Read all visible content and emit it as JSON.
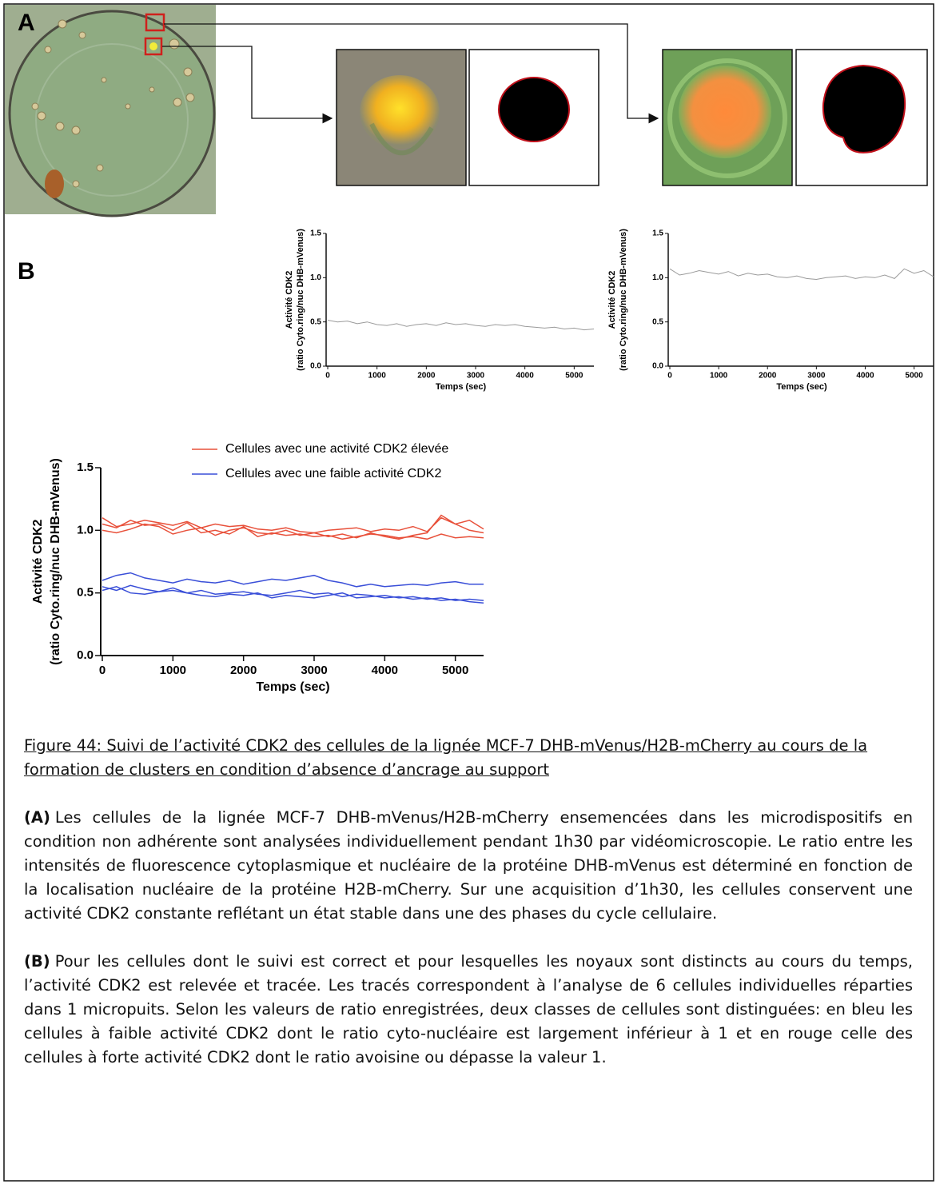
{
  "panel_labels": [
    "A",
    "B"
  ],
  "chart_data": [
    {
      "type": "line",
      "ylabel": [
        "Activité CDK2",
        "(ratio Cyto.ring/nuc DHB-mVenus)"
      ],
      "xlabel": "Temps (sec)",
      "xlim": [
        0,
        5400
      ],
      "ylim": [
        0,
        1.5
      ],
      "xticks": [
        0,
        1000,
        2000,
        3000,
        4000,
        5000
      ],
      "yticks": [
        {
          "value": 0,
          "label": "0.0"
        },
        0.5,
        {
          "value": 1,
          "label": "1.0"
        },
        1.5
      ],
      "x": [
        0,
        200,
        400,
        600,
        800,
        1000,
        1200,
        1400,
        1600,
        1800,
        2000,
        2200,
        2400,
        2600,
        2800,
        3000,
        3200,
        3400,
        3600,
        3800,
        4000,
        4200,
        4400,
        4600,
        4800,
        5000,
        5200,
        5400
      ],
      "color": "#9a9a9a",
      "values": [
        0.52,
        0.5,
        0.51,
        0.48,
        0.5,
        0.47,
        0.46,
        0.48,
        0.45,
        0.47,
        0.48,
        0.46,
        0.49,
        0.47,
        0.48,
        0.46,
        0.45,
        0.47,
        0.46,
        0.47,
        0.45,
        0.44,
        0.43,
        0.44,
        0.42,
        0.43,
        0.41,
        0.42
      ]
    },
    {
      "type": "line",
      "ylabel": [
        "Activité CDK2",
        "(ratio Cyto.ring/nuc DHB-mVenus)"
      ],
      "xlabel": "Temps (sec)",
      "xlim": [
        0,
        5400
      ],
      "ylim": [
        0,
        1.5
      ],
      "xticks": [
        0,
        1000,
        2000,
        3000,
        4000,
        5000
      ],
      "yticks": [
        {
          "value": 0,
          "label": "0.0"
        },
        0.5,
        {
          "value": 1,
          "label": "1.0"
        },
        1.5
      ],
      "x": [
        0,
        200,
        400,
        600,
        800,
        1000,
        1200,
        1400,
        1600,
        1800,
        2000,
        2200,
        2400,
        2600,
        2800,
        3000,
        3200,
        3400,
        3600,
        3800,
        4000,
        4200,
        4400,
        4600,
        4800,
        5000,
        5200,
        5400
      ],
      "color": "#9a9a9a",
      "values": [
        1.1,
        1.03,
        1.05,
        1.08,
        1.06,
        1.04,
        1.07,
        1.02,
        1.05,
        1.03,
        1.04,
        1.01,
        1.0,
        1.02,
        0.99,
        0.98,
        1.0,
        1.01,
        1.02,
        0.99,
        1.01,
        1.0,
        1.03,
        0.99,
        1.1,
        1.05,
        1.08,
        1.01
      ]
    },
    {
      "type": "line",
      "ylabel": [
        "Activité CDK2",
        "(ratio Cyto.ring/nuc DHB-mVenus)"
      ],
      "xlabel": "Temps (sec)",
      "xlim": [
        0,
        5400
      ],
      "ylim": [
        0,
        1.5
      ],
      "xticks": [
        0,
        1000,
        2000,
        3000,
        4000,
        5000
      ],
      "yticks": [
        {
          "value": 0,
          "label": "0.0"
        },
        0.5,
        {
          "value": 1,
          "label": "1.0"
        },
        1.5
      ],
      "legend": "top-center",
      "x": [
        0,
        200,
        400,
        600,
        800,
        1000,
        1200,
        1400,
        1600,
        1800,
        2000,
        2200,
        2400,
        2600,
        2800,
        3000,
        3200,
        3400,
        3600,
        3800,
        4000,
        4200,
        4400,
        4600,
        4800,
        5000,
        5200,
        5400
      ],
      "series": [
        {
          "name": "Cellules avec une activité CDK2 élevée",
          "color": "#e8503a",
          "values": [
            1.1,
            1.03,
            1.05,
            1.08,
            1.06,
            1.04,
            1.07,
            1.02,
            1.05,
            1.03,
            1.04,
            1.01,
            1.0,
            1.02,
            0.99,
            0.98,
            1.0,
            1.01,
            1.02,
            0.99,
            1.01,
            1.0,
            1.03,
            0.99,
            1.1,
            1.05,
            1.08,
            1.01
          ]
        },
        {
          "name": null,
          "color": "#e8503a",
          "values": [
            1.05,
            1.02,
            1.08,
            1.04,
            1.05,
            1.0,
            1.06,
            0.98,
            1.0,
            0.97,
            1.03,
            0.95,
            0.98,
            0.96,
            0.97,
            0.95,
            0.96,
            0.93,
            0.95,
            0.97,
            0.96,
            0.94,
            0.95,
            0.93,
            0.97,
            0.94,
            0.95,
            0.94
          ]
        },
        {
          "name": null,
          "color": "#e8503a",
          "values": [
            1.0,
            0.98,
            1.01,
            1.05,
            1.03,
            0.97,
            1.0,
            1.02,
            0.96,
            1.0,
            1.02,
            0.98,
            0.97,
            1.0,
            0.96,
            0.98,
            0.95,
            0.97,
            0.94,
            0.98,
            0.95,
            0.93,
            0.96,
            0.98,
            1.12,
            1.05,
            1.0,
            0.98
          ]
        },
        {
          "name": "Cellules avec une faible activité CDK2",
          "color": "#3a4fd8",
          "values": [
            0.6,
            0.64,
            0.66,
            0.62,
            0.6,
            0.58,
            0.61,
            0.59,
            0.58,
            0.6,
            0.57,
            0.59,
            0.61,
            0.6,
            0.62,
            0.64,
            0.6,
            0.58,
            0.55,
            0.57,
            0.55,
            0.56,
            0.57,
            0.56,
            0.58,
            0.59,
            0.57,
            0.57
          ]
        },
        {
          "name": null,
          "color": "#3a4fd8",
          "values": [
            0.55,
            0.52,
            0.56,
            0.53,
            0.51,
            0.54,
            0.5,
            0.52,
            0.49,
            0.5,
            0.51,
            0.49,
            0.48,
            0.5,
            0.52,
            0.49,
            0.5,
            0.47,
            0.49,
            0.48,
            0.46,
            0.47,
            0.45,
            0.46,
            0.44,
            0.45,
            0.43,
            0.42
          ]
        },
        {
          "name": null,
          "color": "#3a4fd8",
          "values": [
            0.52,
            0.55,
            0.5,
            0.49,
            0.51,
            0.52,
            0.5,
            0.48,
            0.47,
            0.49,
            0.48,
            0.5,
            0.46,
            0.48,
            0.47,
            0.46,
            0.48,
            0.5,
            0.46,
            0.47,
            0.48,
            0.46,
            0.47,
            0.45,
            0.46,
            0.44,
            0.45,
            0.44
          ]
        }
      ]
    }
  ],
  "caption": {
    "title": "Figure 44: Suivi de l’activité CDK2 des cellules de la lignée MCF-7 DHB-mVenus/H2B-mCherry au cours de la formation de clusters en condition d’absence d’ancrage au support",
    "paragraphs": [
      {
        "label": "(A)",
        "text": "Les cellules de la lignée MCF-7 DHB-mVenus/H2B-mCherry ensemencées dans les microdispositifs en condition non adhérente sont analysées individuellement pendant 1h30 par vidéomicroscopie. Le ratio entre les intensités de fluorescence cytoplasmique et nucléaire de la protéine DHB-mVenus est déterminé en fonction de la localisation nucléaire de la protéine H2B-mCherry. Sur une acquisition d’1h30, les cellules conservent une activité CDK2 constante reflétant un état stable dans une des phases du cycle cellulaire."
      },
      {
        "label": "(B)",
        "text": "Pour les cellules dont le suivi est correct et pour lesquelles les noyaux sont distincts au cours du temps, l’activité CDK2 est relevée et tracée. Les tracés correspondent à l’analyse de 6 cellules individuelles réparties dans 1 micropuits. Selon les valeurs de ratio enregistrées, deux classes de cellules sont distinguées: en bleu les cellules à faible activité CDK2 dont le ratio cyto-nucléaire est largement inférieur à 1 et en rouge celle des cellules à forte activité CDK2 dont le ratio avoisine ou dépasse la valeur 1."
      }
    ]
  }
}
